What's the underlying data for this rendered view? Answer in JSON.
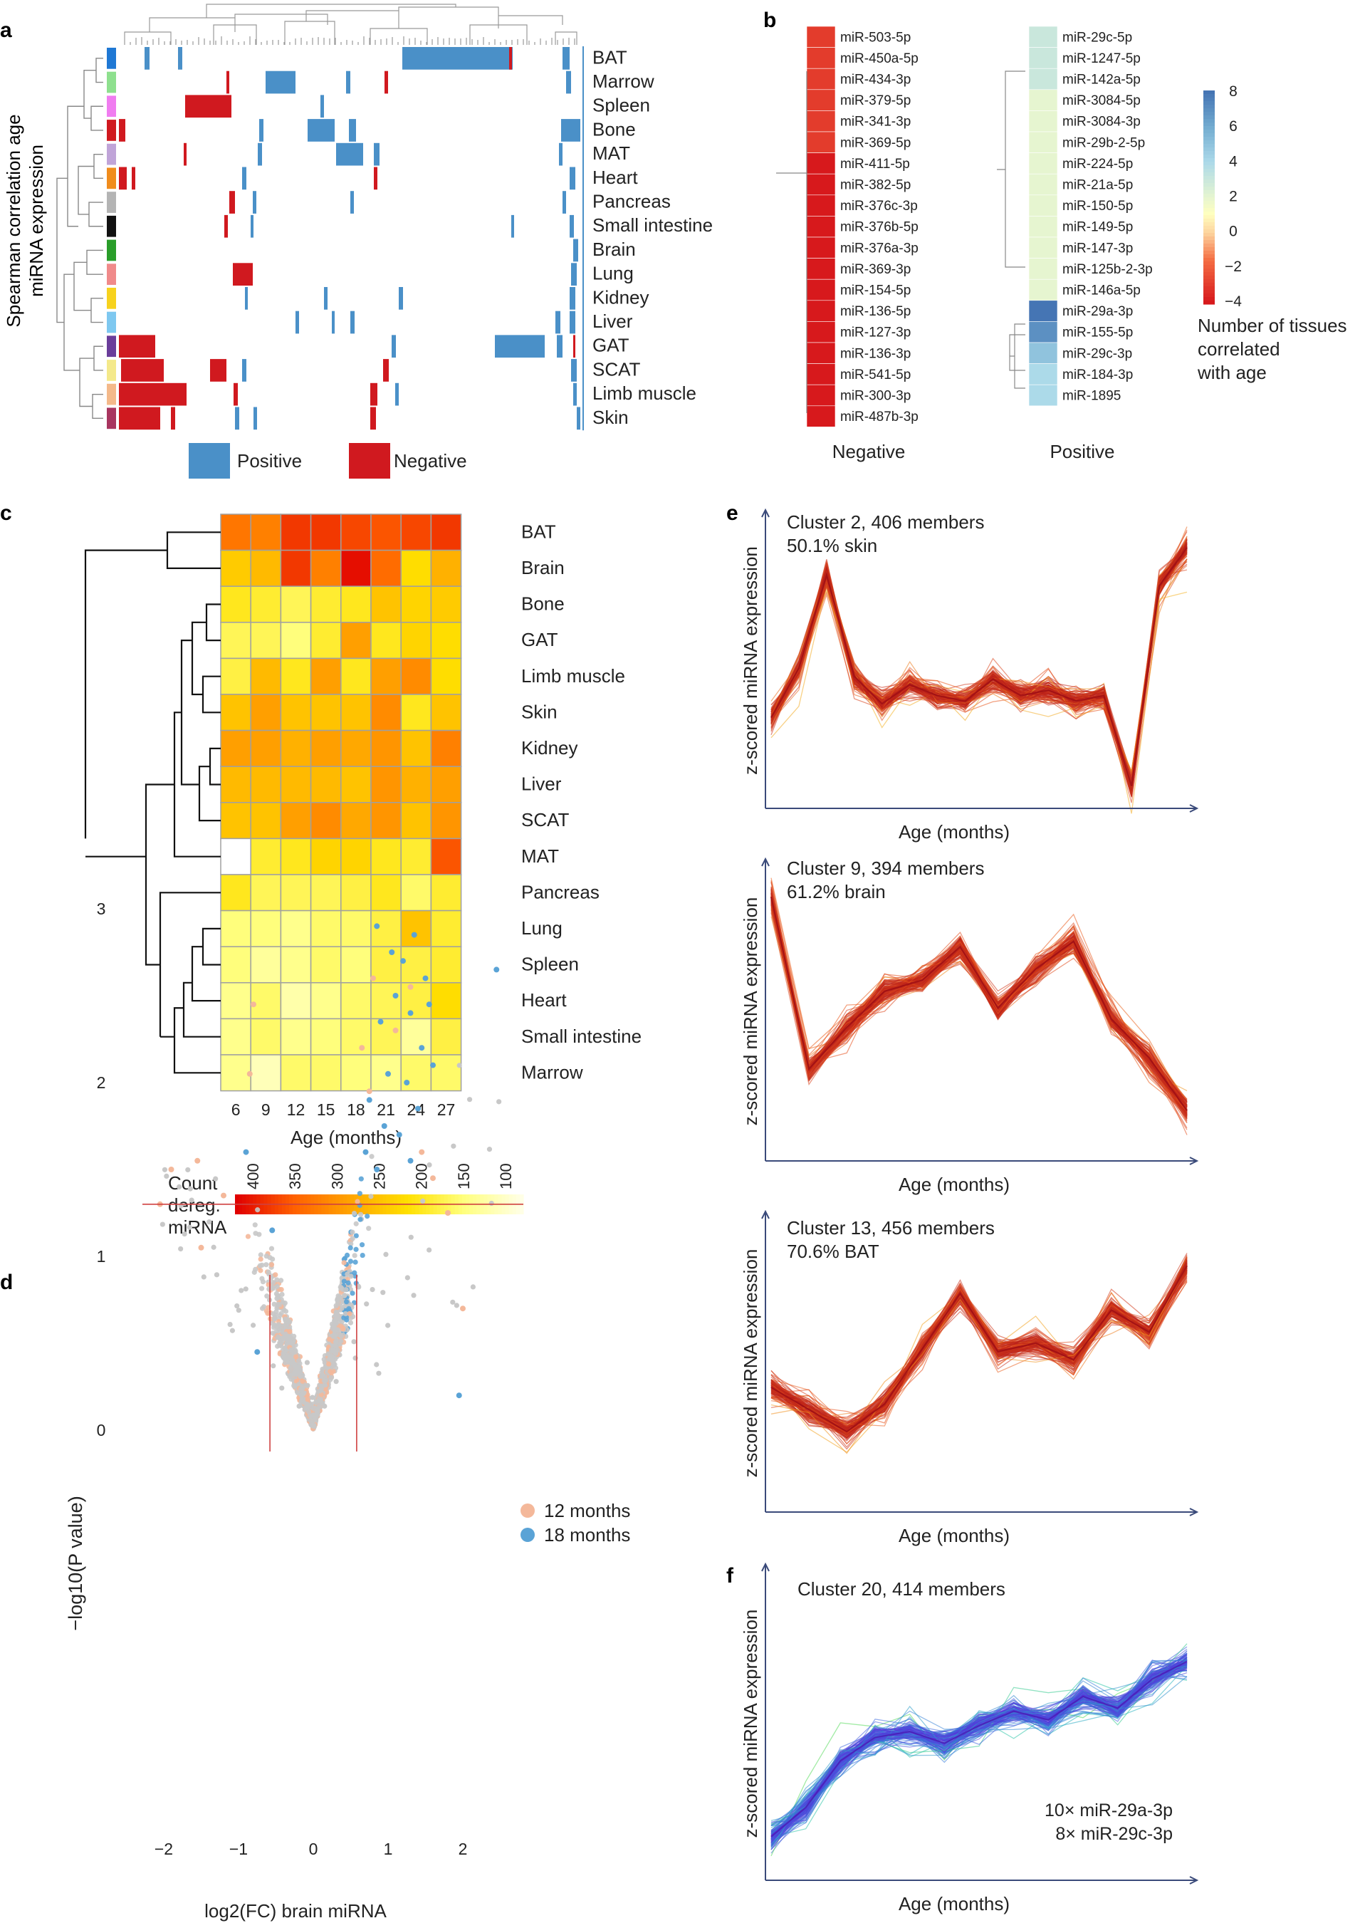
{
  "panel_labels": [
    "a",
    "b",
    "c",
    "d",
    "e",
    "f"
  ],
  "colors": {
    "positive": "#4a90c8",
    "negative": "#d0191f",
    "grey_points": "#c8c8c8",
    "pink_points": "#f4b89a",
    "blue_points": "#5aa3d6",
    "line_red": "#b2171a"
  },
  "chart_data": [
    {
      "panel": "a",
      "type": "heatmap",
      "ylabel": "Spearman correlation age\nmiRNA expression",
      "tissues": [
        "BAT",
        "Marrow",
        "Spleen",
        "Bone",
        "MAT",
        "Heart",
        "Pancreas",
        "Small intestine",
        "Brain",
        "Lung",
        "Kidney",
        "Liver",
        "GAT",
        "SCAT",
        "Limb muscle",
        "Skin"
      ],
      "tissue_colors": [
        "#1f78d4",
        "#8ee08e",
        "#f07cf0",
        "#d0191f",
        "#c0a4d8",
        "#f08c1c",
        "#b4b4b4",
        "#111111",
        "#2a9d2a",
        "#f08a8a",
        "#f7d21d",
        "#7ec8f0",
        "#6a3d9a",
        "#f4e98a",
        "#f4b98a",
        "#a8355f"
      ],
      "legend": [
        {
          "label": "Positive",
          "key": "positive"
        },
        {
          "label": "Negative",
          "key": "negative"
        }
      ]
    },
    {
      "panel": "b",
      "type": "heatmap",
      "negative": {
        "title": "Negative",
        "labels": [
          "miR-503-5p",
          "miR-450a-5p",
          "miR-434-3p",
          "miR-379-5p",
          "miR-341-3p",
          "miR-369-5p",
          "miR-411-5p",
          "miR-382-5p",
          "miR-376c-3p",
          "miR-376b-5p",
          "miR-376a-3p",
          "miR-369-3p",
          "miR-154-5p",
          "miR-136-5p",
          "miR-127-3p",
          "miR-136-3p",
          "miR-541-5p",
          "miR-300-3p",
          "miR-487b-3p"
        ],
        "values": [
          -3,
          -3,
          -3,
          -3,
          -3,
          -3,
          -4,
          -4,
          -4,
          -4,
          -4,
          -4,
          -4,
          -4,
          -4,
          -4,
          -4,
          -4,
          -4
        ]
      },
      "positive": {
        "title": "Positive",
        "labels": [
          "miR-29c-5p",
          "miR-1247-5p",
          "miR-142a-5p",
          "miR-3084-5p",
          "miR-3084-3p",
          "miR-29b-2-5p",
          "miR-224-5p",
          "miR-21a-5p",
          "miR-150-5p",
          "miR-149-5p",
          "miR-147-3p",
          "miR-125b-2-3p",
          "miR-146a-5p",
          "miR-29a-3p",
          "miR-155-5p",
          "miR-29c-3p",
          "miR-184-3p",
          "miR-1895"
        ],
        "values": [
          3,
          3,
          3,
          2,
          2,
          2,
          2,
          2,
          2,
          2,
          2,
          2,
          2,
          8,
          7,
          5,
          4,
          4
        ]
      },
      "colorbar": {
        "ticks": [
          "8",
          "6",
          "4",
          "2",
          "0",
          "−2",
          "−4"
        ],
        "range": [
          -4,
          8
        ],
        "title": "Number of tissues\ncorrelated\nwith age"
      }
    },
    {
      "panel": "c",
      "type": "heatmap",
      "xlabel": "Age (months)",
      "ages": [
        "6",
        "9",
        "12",
        "15",
        "18",
        "21",
        "24",
        "27"
      ],
      "rows": [
        "BAT",
        "Brain",
        "Bone",
        "GAT",
        "Limb muscle",
        "Skin",
        "Kidney",
        "Liver",
        "SCAT",
        "MAT",
        "Pancreas",
        "Lung",
        "Spleen",
        "Heart",
        "Small intestine",
        "Marrow"
      ],
      "values": [
        [
          330,
          320,
          380,
          380,
          370,
          360,
          370,
          380
        ],
        [
          240,
          260,
          380,
          320,
          410,
          340,
          220,
          270
        ],
        [
          200,
          190,
          170,
          190,
          200,
          250,
          230,
          240
        ],
        [
          170,
          170,
          150,
          190,
          290,
          200,
          230,
          220
        ],
        [
          180,
          260,
          200,
          290,
          200,
          290,
          310,
          220
        ],
        [
          250,
          290,
          250,
          250,
          250,
          310,
          200,
          250
        ],
        [
          290,
          290,
          270,
          290,
          280,
          300,
          250,
          320
        ],
        [
          260,
          260,
          260,
          260,
          250,
          300,
          270,
          290
        ],
        [
          250,
          250,
          290,
          310,
          280,
          300,
          250,
          300
        ],
        [
          80,
          190,
          200,
          230,
          230,
          200,
          190,
          360
        ],
        [
          200,
          170,
          170,
          170,
          180,
          200,
          160,
          190
        ],
        [
          150,
          150,
          140,
          160,
          160,
          180,
          250,
          190
        ],
        [
          150,
          130,
          140,
          160,
          150,
          180,
          180,
          190
        ],
        [
          140,
          160,
          120,
          140,
          160,
          170,
          180,
          220
        ],
        [
          140,
          160,
          140,
          150,
          160,
          170,
          130,
          180
        ],
        [
          140,
          110,
          160,
          160,
          150,
          140,
          160,
          160
        ]
      ],
      "colorbar": {
        "title": "Count\ndereg.\nmiRNA",
        "ticks": [
          "400",
          "350",
          "300",
          "250",
          "200",
          "150",
          "100"
        ],
        "range": [
          80,
          420
        ]
      }
    },
    {
      "panel": "d",
      "type": "scatter",
      "xlabel": "log2(FC) brain miRNA",
      "ylabel": "−log10(P value)",
      "xlim": [
        -2.4,
        2.8
      ],
      "ylim": [
        0,
        3.2
      ],
      "xticks": [
        "−2",
        "−1",
        "0",
        "1",
        "2"
      ],
      "yticks": [
        "0",
        "1",
        "2",
        "3"
      ],
      "thresholds": {
        "x": [
          -0.58,
          0.58
        ],
        "y": 1.3
      },
      "legend": [
        "12 months",
        "18 months"
      ],
      "highlight_18_months": [
        [
          0.85,
          2.9
        ],
        [
          1.05,
          2.75
        ],
        [
          1.2,
          2.7
        ],
        [
          1.35,
          2.85
        ],
        [
          1.5,
          2.6
        ],
        [
          1.1,
          2.5
        ],
        [
          1.3,
          2.4
        ],
        [
          1.55,
          2.45
        ],
        [
          0.9,
          2.35
        ],
        [
          1.45,
          2.2
        ],
        [
          1.6,
          2.1
        ],
        [
          1.0,
          2.05
        ],
        [
          1.25,
          2.0
        ],
        [
          0.75,
          1.9
        ],
        [
          1.4,
          1.85
        ],
        [
          0.95,
          1.75
        ],
        [
          1.15,
          1.7
        ],
        [
          0.7,
          1.6
        ],
        [
          1.3,
          1.55
        ],
        [
          0.85,
          1.5
        ],
        [
          -0.9,
          1.6
        ],
        [
          -0.55,
          1.15
        ],
        [
          -0.75,
          0.45
        ],
        [
          1.95,
          0.2
        ],
        [
          2.45,
          2.65
        ]
      ],
      "highlight_12_months": [
        [
          -1.9,
          1.5
        ],
        [
          -1.5,
          1.05
        ],
        [
          -1.2,
          1.35
        ],
        [
          -0.85,
          2.05
        ],
        [
          -0.8,
          2.45
        ],
        [
          0.8,
          2.6
        ],
        [
          1.3,
          2.55
        ],
        [
          0.65,
          2.2
        ],
        [
          1.1,
          2.3
        ],
        [
          0.75,
          1.95
        ],
        [
          1.45,
          1.6
        ],
        [
          1.6,
          1.45
        ],
        [
          1.8,
          1.25
        ],
        [
          2.0,
          0.7
        ],
        [
          -1.55,
          1.55
        ],
        [
          -2.05,
          1.3
        ]
      ]
    },
    {
      "panel": "e1",
      "type": "line",
      "title": "Cluster 2, 406 members",
      "subtitle": "50.1% skin",
      "xlabel": "Age (months)",
      "ylabel": "z-scored miRNA expression",
      "profile": [
        0.3,
        0.48,
        0.82,
        0.45,
        0.35,
        0.42,
        0.38,
        0.36,
        0.44,
        0.38,
        0.4,
        0.36,
        0.38,
        0.05,
        0.78,
        0.92
      ]
    },
    {
      "panel": "e2",
      "type": "line",
      "title": "Cluster 9, 394 members",
      "subtitle": "61.2% brain",
      "xlabel": "Age (months)",
      "ylabel": "z-scored miRNA expression",
      "profile": [
        0.92,
        0.3,
        0.45,
        0.58,
        0.62,
        0.74,
        0.52,
        0.66,
        0.76,
        0.48,
        0.34,
        0.15
      ]
    },
    {
      "panel": "e3",
      "type": "line",
      "title": "Cluster 13, 456 members",
      "subtitle": "70.6% BAT",
      "xlabel": "Age (months)",
      "ylabel": "z-scored miRNA expression",
      "profile": [
        0.42,
        0.34,
        0.26,
        0.36,
        0.56,
        0.76,
        0.55,
        0.58,
        0.52,
        0.7,
        0.62,
        0.86
      ]
    },
    {
      "panel": "f",
      "type": "line",
      "title": "Cluster 20, 414 members",
      "xlabel": "Age (months)",
      "ylabel": "z-scored miRNA expression",
      "profile": [
        0.12,
        0.22,
        0.38,
        0.46,
        0.48,
        0.44,
        0.5,
        0.55,
        0.52,
        0.6,
        0.56,
        0.66,
        0.72
      ],
      "annotations": [
        "10× miR-29a-3p",
        "8× miR-29c-3p"
      ]
    }
  ]
}
